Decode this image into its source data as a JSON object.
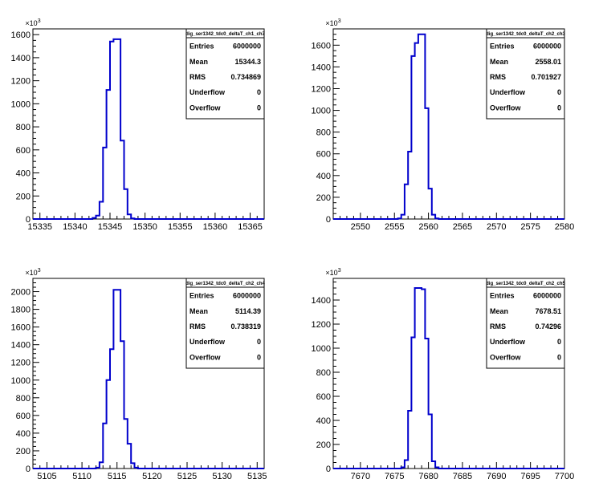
{
  "canvas": {
    "background": "#ffffff"
  },
  "style": {
    "line_color": "#0000cc",
    "axis_color": "#000000"
  },
  "chart_data": [
    {
      "type": "bar",
      "histogram": true,
      "title": "",
      "xlabel": "",
      "ylabel": "",
      "y_multiplier": "x10^3",
      "y_exponent_base": "×10",
      "y_exponent": "3",
      "xlim": [
        15334,
        15367
      ],
      "ylim": [
        0,
        1650
      ],
      "x_ticks": [
        15335,
        15340,
        15345,
        15350,
        15355,
        15360,
        15365
      ],
      "y_ticks": [
        0,
        200,
        400,
        600,
        800,
        1000,
        1200,
        1400,
        1600
      ],
      "bin_start": 15342,
      "bin_width": 0.5,
      "values": [
        0,
        10,
        30,
        150,
        620,
        1120,
        1540,
        1560,
        1560,
        680,
        260,
        40,
        5,
        0
      ],
      "stats": {
        "name": "dig_ser1342_tdc0_deltaT_ch1_ch7",
        "rows": [
          {
            "label": "Entries",
            "value": "6000000"
          },
          {
            "label": "Mean",
            "value": "15344.3"
          },
          {
            "label": "RMS",
            "value": "0.734869"
          },
          {
            "label": "Underflow",
            "value": "0"
          },
          {
            "label": "Overflow",
            "value": "0"
          }
        ]
      }
    },
    {
      "type": "bar",
      "histogram": true,
      "title": "",
      "xlabel": "",
      "ylabel": "",
      "y_multiplier": "x10^3",
      "y_exponent_base": "×10",
      "y_exponent": "3",
      "xlim": [
        2546,
        2580
      ],
      "ylim": [
        0,
        1750
      ],
      "x_ticks": [
        2550,
        2555,
        2560,
        2565,
        2570,
        2575,
        2580
      ],
      "y_ticks": [
        0,
        200,
        400,
        600,
        800,
        1000,
        1200,
        1400,
        1600
      ],
      "bin_start": 2555,
      "bin_width": 0.5,
      "values": [
        0,
        5,
        40,
        320,
        620,
        1500,
        1620,
        1700,
        1700,
        1020,
        280,
        40,
        5,
        0
      ],
      "stats": {
        "name": "dig_ser1342_tdc0_deltaT_ch2_ch3",
        "rows": [
          {
            "label": "Entries",
            "value": "6000000"
          },
          {
            "label": "Mean",
            "value": "2558.01"
          },
          {
            "label": "RMS",
            "value": "0.701927"
          },
          {
            "label": "Underflow",
            "value": "0"
          },
          {
            "label": "Overflow",
            "value": "0"
          }
        ]
      }
    },
    {
      "type": "bar",
      "histogram": true,
      "title": "",
      "xlabel": "",
      "ylabel": "",
      "y_multiplier": "x10^3",
      "y_exponent_base": "×10",
      "y_exponent": "3",
      "xlim": [
        5103,
        5136
      ],
      "ylim": [
        0,
        2150
      ],
      "x_ticks": [
        5105,
        5110,
        5115,
        5120,
        5125,
        5130,
        5135
      ],
      "y_ticks": [
        0,
        200,
        400,
        600,
        800,
        1000,
        1200,
        1400,
        1600,
        1800,
        2000
      ],
      "bin_start": 5111.5,
      "bin_width": 0.5,
      "values": [
        0,
        10,
        70,
        510,
        1000,
        1350,
        2020,
        2020,
        1440,
        560,
        280,
        60,
        10,
        0
      ],
      "stats": {
        "name": "dig_ser1342_tdc0_deltaT_ch2_ch4",
        "rows": [
          {
            "label": "Entries",
            "value": "6000000"
          },
          {
            "label": "Mean",
            "value": "5114.39"
          },
          {
            "label": "RMS",
            "value": "0.738319"
          },
          {
            "label": "Underflow",
            "value": "0"
          },
          {
            "label": "Overflow",
            "value": "0"
          }
        ]
      }
    },
    {
      "type": "bar",
      "histogram": true,
      "title": "",
      "xlabel": "",
      "ylabel": "",
      "y_multiplier": "x10^3",
      "y_exponent_base": "×10",
      "y_exponent": "3",
      "xlim": [
        7666,
        7700
      ],
      "ylim": [
        0,
        1580
      ],
      "x_ticks": [
        7670,
        7675,
        7680,
        7685,
        7690,
        7695,
        7700
      ],
      "y_ticks": [
        0,
        200,
        400,
        600,
        800,
        1000,
        1200,
        1400
      ],
      "bin_start": 7675.5,
      "bin_width": 0.5,
      "values": [
        0,
        10,
        70,
        480,
        1090,
        1500,
        1500,
        1490,
        1080,
        450,
        60,
        10,
        0
      ],
      "stats": {
        "name": "dig_ser1342_tdc0_deltaT_ch2_ch5",
        "rows": [
          {
            "label": "Entries",
            "value": "6000000"
          },
          {
            "label": "Mean",
            "value": "7678.51"
          },
          {
            "label": "RMS",
            "value": "0.74296"
          },
          {
            "label": "Underflow",
            "value": "0"
          },
          {
            "label": "Overflow",
            "value": "0"
          }
        ]
      }
    }
  ]
}
